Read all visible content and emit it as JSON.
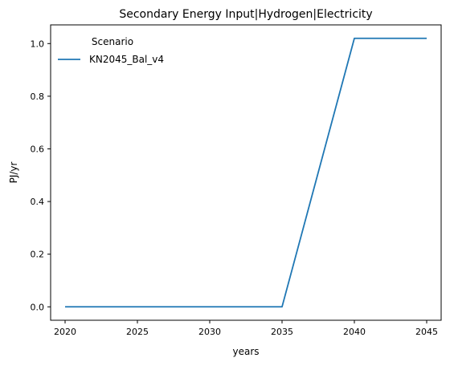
{
  "chart_data": {
    "type": "line",
    "title": "Secondary Energy Input|Hydrogen|Electricity",
    "xlabel": "years",
    "ylabel": "PJ/yr",
    "x": [
      2020,
      2025,
      2030,
      2035,
      2040,
      2045
    ],
    "series": [
      {
        "name": "KN2045_Bal_v4",
        "color": "#1f77b4",
        "values": [
          0.0,
          0.0,
          0.0,
          0.0,
          1.02,
          1.02
        ]
      }
    ],
    "xlim": [
      2019.0,
      2046.0
    ],
    "ylim": [
      -0.051,
      1.071
    ],
    "xticks": [
      2020,
      2025,
      2030,
      2035,
      2040,
      2045
    ],
    "yticks": [
      0.0,
      0.2,
      0.4,
      0.6,
      0.8,
      1.0
    ],
    "xtick_labels": [
      "2020",
      "2025",
      "2030",
      "2035",
      "2040",
      "2045"
    ],
    "ytick_labels": [
      "0.0",
      "0.2",
      "0.4",
      "0.6",
      "0.8",
      "1.0"
    ],
    "legend": {
      "title": "Scenario",
      "placement": "upper-left"
    },
    "grid": false
  }
}
